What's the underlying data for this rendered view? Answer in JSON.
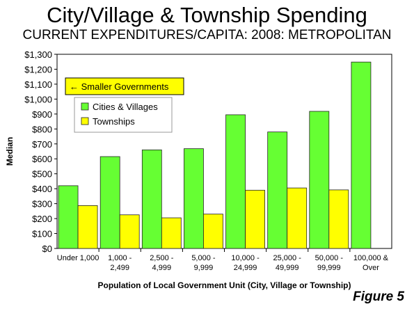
{
  "title": "City/Village & Township Spending",
  "subtitle": "CURRENT EXPENDITURES/CAPITA: 2008: METROPOLITAN",
  "figure_label": "Figure 5",
  "annotation": "← Smaller Governments",
  "colors": {
    "cities": "#66ff33",
    "townships": "#ffff00",
    "annotation_bg": "#ffff00"
  },
  "chart_data": {
    "type": "bar",
    "title": "City/Village & Township Spending",
    "subtitle": "CURRENT EXPENDITURES/CAPITA: 2008: METROPOLITAN",
    "xlabel": "Population of Local Government Unit (City, Village or Township)",
    "ylabel": "Median",
    "ylim": [
      0,
      1300
    ],
    "ytick_step": 100,
    "ytick_labels": [
      "$0",
      "$100",
      "$200",
      "$300",
      "$400",
      "$500",
      "$600",
      "$700",
      "$800",
      "$900",
      "$1,000",
      "$1,100",
      "$1,200",
      "$1,300"
    ],
    "grid": false,
    "legend_position": "top-left",
    "categories": [
      [
        "Under 1,000"
      ],
      [
        "1,000 -",
        "2,499"
      ],
      [
        "2,500 -",
        "4,999"
      ],
      [
        "5,000 -",
        "9,999"
      ],
      [
        "10,000 -",
        "24,999"
      ],
      [
        "25,000 -",
        "49,999"
      ],
      [
        "50,000 -",
        "99,999"
      ],
      [
        "100,000 &",
        "Over"
      ]
    ],
    "series": [
      {
        "name": "Cities & Villages",
        "values": [
          420,
          615,
          660,
          668,
          895,
          780,
          918,
          1248
        ]
      },
      {
        "name": "Townships",
        "values": [
          287,
          225,
          205,
          230,
          390,
          405,
          392,
          null
        ]
      }
    ]
  }
}
